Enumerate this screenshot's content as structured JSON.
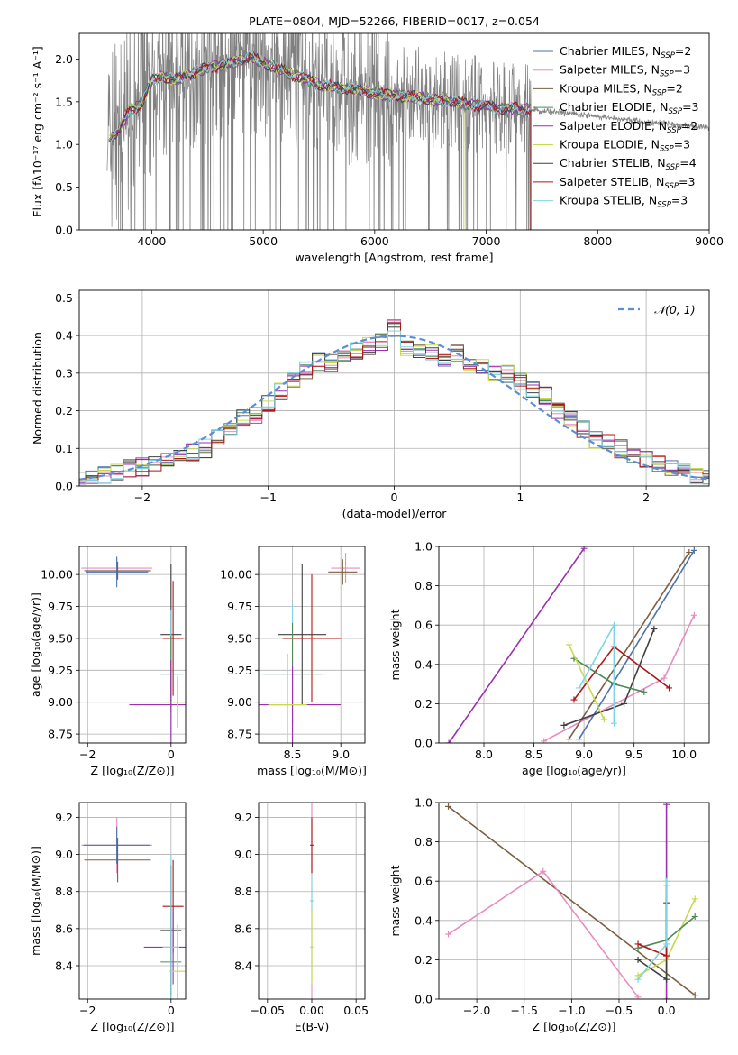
{
  "colors": {
    "spectrum": "#808080",
    "series": [
      "#4c72b0",
      "#e88cc0",
      "#7a6040",
      "#4f8a5b",
      "#9b30b0",
      "#c9d94f",
      "#404040",
      "#b01515",
      "#7fd4e0"
    ],
    "gauss": "#5b8ed6",
    "grid": "#b0b0b0"
  },
  "chart_data": [
    {
      "id": "spectrum",
      "type": "line",
      "title": "PLATE=0804, MJD=52266, FIBERID=0017, z=0.054",
      "xlabel": "wavelength [Angstrom, rest frame]",
      "ylabel": "Flux [fλ10⁻¹⁷ erg cm⁻² s⁻¹ A⁻¹]",
      "xlim": [
        3350,
        9000
      ],
      "ylim": [
        0,
        2.3
      ],
      "xticks": [
        4000,
        5000,
        6000,
        7000,
        8000,
        9000
      ],
      "yticks": [
        0.0,
        0.5,
        1.0,
        1.5,
        2.0
      ],
      "grid": false,
      "legend_position": "top-right",
      "legend": [
        "Chabrier MILES, N_SSP=2",
        "Salpeter MILES, N_SSP=3",
        "Kroupa MILES, N_SSP=2",
        "Chabrier ELODIE, N_SSP=3",
        "Salpeter ELODIE, N_SSP=2",
        "Kroupa ELODIE, N_SSP=3",
        "Chabrier STELIB, N_SSP=4",
        "Salpeter STELIB, N_SSP=3",
        "Kroupa STELIB, N_SSP=3"
      ],
      "continuum": [
        [
          3600,
          1.05
        ],
        [
          3700,
          1.15
        ],
        [
          3800,
          1.4
        ],
        [
          3900,
          1.45
        ],
        [
          4000,
          1.75
        ],
        [
          4100,
          1.8
        ],
        [
          4200,
          1.75
        ],
        [
          4300,
          1.8
        ],
        [
          4400,
          1.85
        ],
        [
          4500,
          1.9
        ],
        [
          4600,
          1.92
        ],
        [
          4700,
          1.95
        ],
        [
          4800,
          2.0
        ],
        [
          4900,
          2.02
        ],
        [
          5000,
          1.95
        ],
        [
          5100,
          1.9
        ],
        [
          5200,
          1.85
        ],
        [
          5300,
          1.8
        ],
        [
          5400,
          1.75
        ],
        [
          5500,
          1.7
        ],
        [
          5600,
          1.68
        ],
        [
          5700,
          1.66
        ],
        [
          5800,
          1.65
        ],
        [
          5900,
          1.62
        ],
        [
          6000,
          1.6
        ],
        [
          6100,
          1.58
        ],
        [
          6200,
          1.57
        ],
        [
          6300,
          1.56
        ],
        [
          6400,
          1.55
        ],
        [
          6500,
          1.52
        ],
        [
          6600,
          1.52
        ],
        [
          6700,
          1.5
        ],
        [
          6800,
          1.48
        ],
        [
          6900,
          1.46
        ],
        [
          7000,
          1.45
        ],
        [
          7100,
          1.43
        ],
        [
          7200,
          1.42
        ],
        [
          7300,
          1.42
        ],
        [
          7400,
          1.41
        ]
      ],
      "data_extension": [
        [
          7400,
          1.4
        ],
        [
          7600,
          1.38
        ],
        [
          7800,
          1.36
        ],
        [
          8000,
          1.32
        ],
        [
          8200,
          1.3
        ],
        [
          8400,
          1.26
        ],
        [
          8600,
          1.25
        ],
        [
          8800,
          1.22
        ],
        [
          9000,
          1.2
        ]
      ]
    },
    {
      "id": "residuals",
      "type": "line",
      "xlabel": "(data-model)/error",
      "ylabel": "Normed distribution",
      "xlim": [
        -2.5,
        2.5
      ],
      "ylim": [
        0,
        0.52
      ],
      "xticks": [
        -2,
        -1,
        0,
        1,
        2
      ],
      "yticks": [
        0.0,
        0.1,
        0.2,
        0.3,
        0.4,
        0.5
      ],
      "grid": true,
      "legend_position": "top-right",
      "legend": [
        "N(0,1)"
      ],
      "bin_width": 0.1,
      "hist_base": [
        0.015,
        0.02,
        0.03,
        0.035,
        0.045,
        0.05,
        0.06,
        0.07,
        0.08,
        0.09,
        0.1,
        0.13,
        0.16,
        0.18,
        0.19,
        0.22,
        0.25,
        0.28,
        0.31,
        0.33,
        0.33,
        0.35,
        0.36,
        0.37,
        0.38,
        0.42,
        0.37,
        0.36,
        0.35,
        0.34,
        0.35,
        0.33,
        0.32,
        0.3,
        0.3,
        0.28,
        0.26,
        0.24,
        0.2,
        0.18,
        0.15,
        0.12,
        0.12,
        0.1,
        0.08,
        0.07,
        0.06,
        0.05,
        0.04,
        0.03,
        0.02
      ]
    },
    {
      "id": "age_vs_Z",
      "type": "scatter",
      "xlabel": "Z [log₁₀(Z/Z⊙)]",
      "ylabel": "age  [log₁₀(age/yr)]",
      "xlim": [
        -2.2,
        0.35
      ],
      "ylim": [
        8.68,
        10.22
      ],
      "xticks": [
        -2,
        0
      ],
      "yticks": [
        8.75,
        9.0,
        9.25,
        9.5,
        9.75,
        10.0
      ],
      "grid": true,
      "points": [
        {
          "x": -1.3,
          "y": 10.05,
          "xe": 0.85,
          "ye": 0.08,
          "c": 1
        },
        {
          "x": -1.3,
          "y": 10.02,
          "xe": 0.75,
          "ye": 0.12,
          "c": 0
        },
        {
          "x": -1.28,
          "y": 10.03,
          "xe": 0.8,
          "ye": 0.07,
          "c": 2
        },
        {
          "x": 0,
          "y": 9.53,
          "xe": 0.25,
          "ye": 0.55,
          "c": 6
        },
        {
          "x": 0.05,
          "y": 9.5,
          "xe": 0.25,
          "ye": 0.45,
          "c": 7
        },
        {
          "x": 0,
          "y": 9.22,
          "xe": 0.3,
          "ye": 0.5,
          "c": 8
        },
        {
          "x": 0,
          "y": 9.22,
          "xe": 0.25,
          "ye": 0.3,
          "c": 3
        },
        {
          "x": 0,
          "y": 8.98,
          "xe": 1.0,
          "ye": 0.35,
          "c": 4
        },
        {
          "x": 0.15,
          "y": 9.0,
          "xe": 0.35,
          "ye": 0.2,
          "c": 5
        }
      ]
    },
    {
      "id": "age_vs_mass",
      "type": "scatter",
      "xlabel": "mass [log₁₀(M/M⊙)]",
      "ylabel": "",
      "xlim": [
        8.15,
        9.25
      ],
      "ylim": [
        8.68,
        10.22
      ],
      "xticks": [
        8.5,
        9.0
      ],
      "yticks": [
        8.75,
        9.0,
        9.25,
        9.5,
        9.75,
        10.0
      ],
      "grid": true,
      "points": [
        {
          "x": 9.05,
          "y": 10.05,
          "xe": 0.15,
          "ye": 0.12,
          "c": 1
        },
        {
          "x": 9.02,
          "y": 10.02,
          "xe": 0.15,
          "ye": 0.1,
          "c": 2
        },
        {
          "x": 8.6,
          "y": 9.53,
          "xe": 0.25,
          "ye": 0.55,
          "c": 6
        },
        {
          "x": 8.7,
          "y": 9.5,
          "xe": 0.3,
          "ye": 0.5,
          "c": 7
        },
        {
          "x": 8.5,
          "y": 9.22,
          "xe": 0.35,
          "ye": 0.55,
          "c": 8
        },
        {
          "x": 8.5,
          "y": 9.22,
          "xe": 0.3,
          "ye": 0.4,
          "c": 3
        },
        {
          "x": 8.5,
          "y": 8.98,
          "xe": 0.5,
          "ye": 0.3,
          "c": 4
        },
        {
          "x": 8.45,
          "y": 8.98,
          "xe": 0.2,
          "ye": 0.4,
          "c": 5
        }
      ]
    },
    {
      "id": "massweight_vs_age",
      "type": "line",
      "xlabel": "age  [log₁₀(age/yr)]",
      "ylabel": "mass weight",
      "xlim": [
        7.55,
        10.25
      ],
      "ylim": [
        0,
        1.0
      ],
      "xticks": [
        8.0,
        8.5,
        9.0,
        9.5,
        10.0
      ],
      "yticks": [
        0.0,
        0.2,
        0.4,
        0.6,
        0.8,
        1.0
      ],
      "grid": true,
      "series": [
        {
          "c": 4,
          "x": [
            7.65,
            9.0
          ],
          "y": [
            0.0,
            0.99
          ]
        },
        {
          "c": 1,
          "x": [
            8.6,
            9.8,
            10.1
          ],
          "y": [
            0.01,
            0.33,
            0.65
          ]
        },
        {
          "c": 2,
          "x": [
            8.85,
            10.05
          ],
          "y": [
            0.02,
            0.97
          ]
        },
        {
          "c": 0,
          "x": [
            8.95,
            10.1
          ],
          "y": [
            0.02,
            0.98
          ]
        },
        {
          "c": 6,
          "x": [
            8.8,
            9.4,
            9.7
          ],
          "y": [
            0.09,
            0.2,
            0.58
          ]
        },
        {
          "c": 7,
          "x": [
            8.9,
            9.3,
            9.85
          ],
          "y": [
            0.22,
            0.49,
            0.28
          ]
        },
        {
          "c": 3,
          "x": [
            8.9,
            9.3,
            9.6
          ],
          "y": [
            0.43,
            0.3,
            0.26
          ]
        },
        {
          "c": 5,
          "x": [
            8.85,
            9.2
          ],
          "y": [
            0.5,
            0.12
          ]
        },
        {
          "c": 8,
          "x": [
            8.95,
            9.3,
            9.3
          ],
          "y": [
            0.28,
            0.6,
            0.1
          ]
        }
      ]
    },
    {
      "id": "mass_vs_Z",
      "type": "scatter",
      "xlabel": "Z [log₁₀(Z/Z⊙)]",
      "ylabel": "mass [log₁₀(M/M⊙)]",
      "xlim": [
        -2.2,
        0.35
      ],
      "ylim": [
        8.22,
        9.28
      ],
      "xticks": [
        -2,
        0
      ],
      "yticks": [
        8.4,
        8.6,
        8.8,
        9.0,
        9.2
      ],
      "grid": true,
      "points": [
        {
          "x": -1.3,
          "y": 9.05,
          "xe": 0.85,
          "ye": 0.15,
          "c": 1
        },
        {
          "x": -1.3,
          "y": 9.05,
          "xe": 0.8,
          "ye": 0.1,
          "c": 0
        },
        {
          "x": -1.28,
          "y": 8.97,
          "xe": 0.8,
          "ye": 0.12,
          "c": 2
        },
        {
          "x": 0.05,
          "y": 8.72,
          "xe": 0.25,
          "ye": 0.25,
          "c": 7
        },
        {
          "x": 0,
          "y": 8.59,
          "xe": 0.25,
          "ye": 0.35,
          "c": 6
        },
        {
          "x": 0.05,
          "y": 8.5,
          "xe": 0.7,
          "ye": 0.2,
          "c": 4
        },
        {
          "x": 0,
          "y": 8.42,
          "xe": 0.25,
          "ye": 0.3,
          "c": 3
        },
        {
          "x": 0.15,
          "y": 8.37,
          "xe": 0.2,
          "ye": 0.25,
          "c": 5
        },
        {
          "x": 0,
          "y": 8.5,
          "xe": 0.2,
          "ye": 0.5,
          "c": 8
        }
      ]
    },
    {
      "id": "mass_vs_ebv",
      "type": "scatter",
      "xlabel": "E(B-V)",
      "ylabel": "",
      "xlim": [
        -0.06,
        0.06
      ],
      "ylim": [
        8.22,
        9.28
      ],
      "xticks": [
        -0.05,
        0.0,
        0.05
      ],
      "yticks": [
        8.4,
        8.6,
        8.8,
        9.0,
        9.2
      ],
      "grid": true,
      "points": [
        {
          "x": 0,
          "y": 8.75,
          "xe": 0.002,
          "ye": 0.55,
          "c": 1
        },
        {
          "x": 0,
          "y": 8.75,
          "xe": 0.002,
          "ye": 0.45,
          "c": 8
        },
        {
          "x": 0,
          "y": 9.05,
          "xe": 0.002,
          "ye": 0.15,
          "c": 7
        },
        {
          "x": 0,
          "y": 8.5,
          "xe": 0.002,
          "ye": 0.2,
          "c": 5
        }
      ]
    },
    {
      "id": "massweight_vs_Z",
      "type": "line",
      "xlabel": "Z [log₁₀(Z/Z⊙)]",
      "ylabel": "mass weight",
      "xlim": [
        -2.4,
        0.45
      ],
      "ylim": [
        0,
        1.0
      ],
      "xticks": [
        -2.0,
        -1.5,
        -1.0,
        -0.5,
        0.0
      ],
      "yticks": [
        0.0,
        0.2,
        0.4,
        0.6,
        0.8,
        1.0
      ],
      "grid": true,
      "series": [
        {
          "c": 2,
          "x": [
            -2.3,
            0.3
          ],
          "y": [
            0.98,
            0.02
          ]
        },
        {
          "c": 1,
          "x": [
            -2.3,
            -1.3,
            -0.3
          ],
          "y": [
            0.33,
            0.65,
            0.01
          ]
        },
        {
          "c": 4,
          "x": [
            0,
            0
          ],
          "y": [
            0.0,
            0.99
          ]
        },
        {
          "c": 5,
          "x": [
            -0.3,
            0,
            0.3
          ],
          "y": [
            0.12,
            0.2,
            0.51
          ]
        },
        {
          "c": 3,
          "x": [
            -0.3,
            0,
            0.3
          ],
          "y": [
            0.26,
            0.3,
            0.42
          ]
        },
        {
          "c": 6,
          "x": [
            -0.3,
            0,
            0
          ],
          "y": [
            0.2,
            0.1,
            0.58
          ]
        },
        {
          "c": 7,
          "x": [
            -0.3,
            0,
            0
          ],
          "y": [
            0.28,
            0.22,
            0.49
          ]
        },
        {
          "c": 8,
          "x": [
            -0.3,
            0,
            0
          ],
          "y": [
            0.1,
            0.28,
            0.6
          ]
        }
      ]
    }
  ]
}
